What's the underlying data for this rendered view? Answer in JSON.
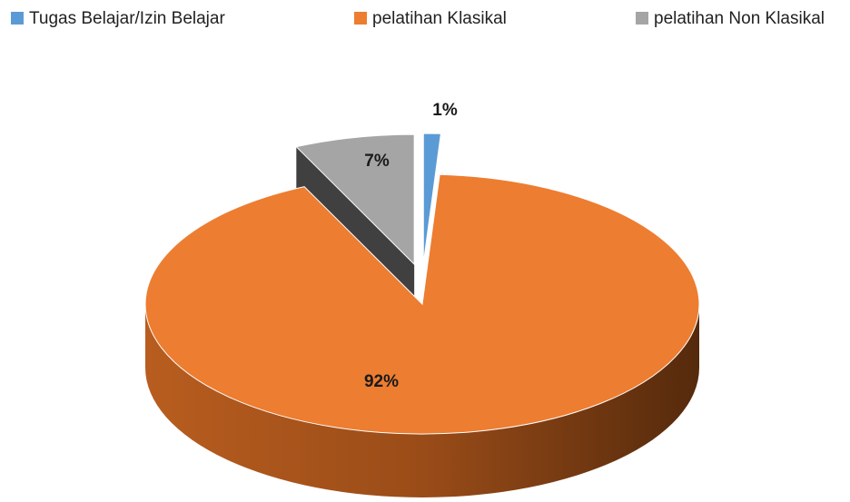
{
  "chart_data": {
    "type": "pie",
    "categories": [
      "Tugas Belajar/Izin Belajar",
      "pelatihan Klasikal",
      "pelatihan Non Klasikal"
    ],
    "values": [
      1,
      92,
      7
    ],
    "value_labels": [
      "1%",
      "92%",
      "7%"
    ],
    "colors": [
      "#5b9bd5",
      "#ed7d31",
      "#a5a5a5"
    ],
    "legend": "top"
  }
}
